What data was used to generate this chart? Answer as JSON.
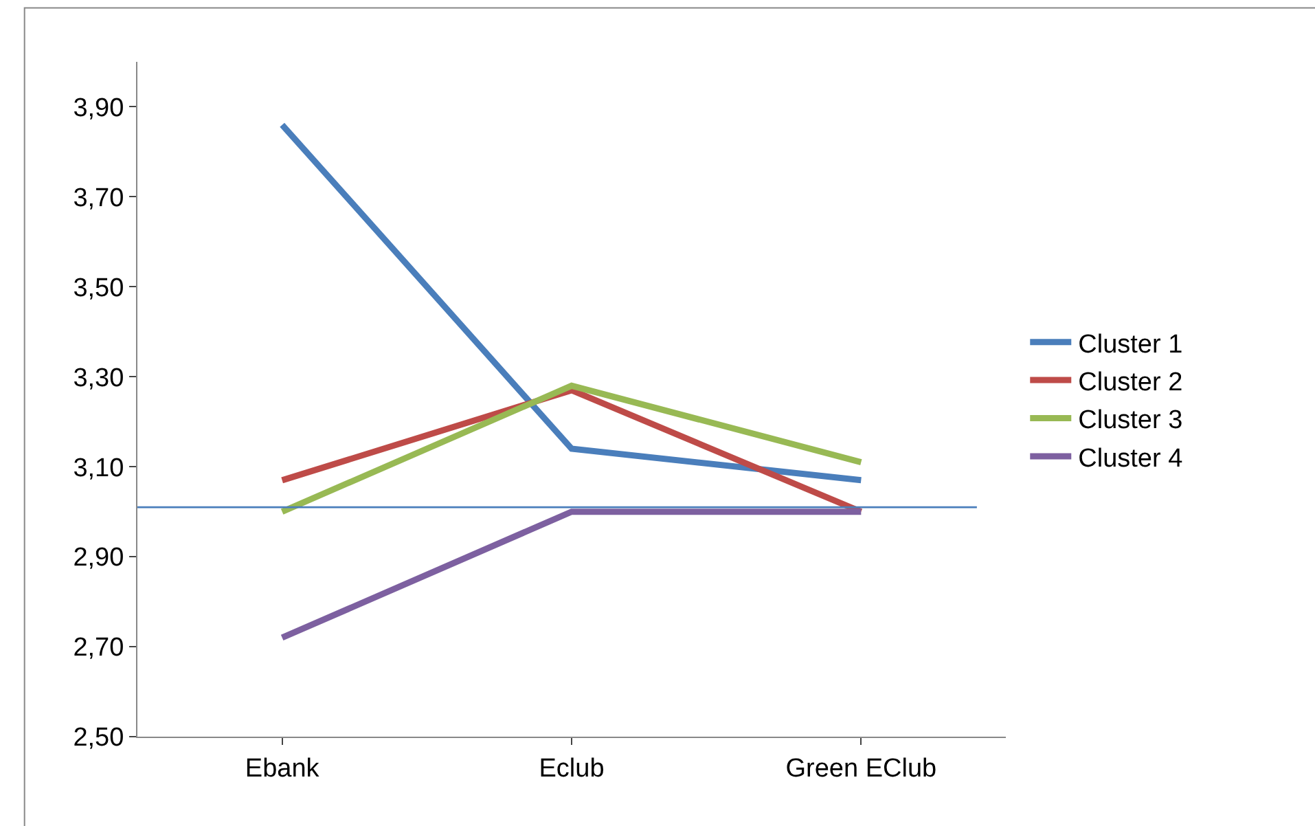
{
  "chart_data": {
    "type": "line",
    "categories": [
      "Ebank",
      "Eclub",
      "Green EClub"
    ],
    "series": [
      {
        "name": "Cluster 1",
        "color": "#4a7ebb",
        "values": [
          3.86,
          3.14,
          3.07
        ]
      },
      {
        "name": "Cluster 2",
        "color": "#be4b48",
        "values": [
          3.07,
          3.27,
          3.0
        ]
      },
      {
        "name": "Cluster 3",
        "color": "#98b954",
        "values": [
          3.0,
          3.28,
          3.11
        ]
      },
      {
        "name": "Cluster 4",
        "color": "#7d60a0",
        "values": [
          2.72,
          3.0,
          3.0
        ]
      }
    ],
    "ylim": [
      2.5,
      4.0
    ],
    "yticks": [
      {
        "value": 2.5,
        "label": "2,50"
      },
      {
        "value": 2.7,
        "label": "2,70"
      },
      {
        "value": 2.9,
        "label": "2,90"
      },
      {
        "value": 3.1,
        "label": "3,10"
      },
      {
        "value": 3.3,
        "label": "3,30"
      },
      {
        "value": 3.5,
        "label": "3,50"
      },
      {
        "value": 3.7,
        "label": "3,70"
      },
      {
        "value": 3.9,
        "label": "3,90"
      }
    ],
    "ref_lines": [
      {
        "axis": "y",
        "value": 3.01,
        "color": "#4a7ebb",
        "line_style": "solid"
      }
    ],
    "legend": "right",
    "marker": "none",
    "line_style": "solid"
  }
}
